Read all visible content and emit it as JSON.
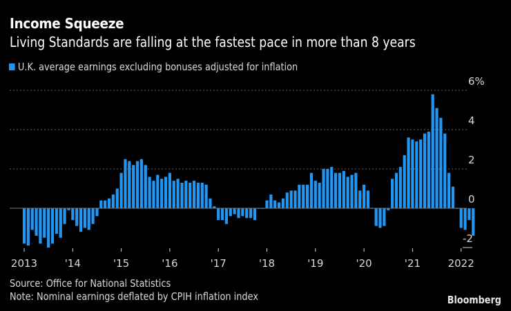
{
  "header": {
    "title": "Income Squeeze",
    "subtitle": "Living Standards are falling at the fastest pace in more than 8 years"
  },
  "legend": {
    "label": "U.K. average earnings excluding bonuses adjusted for inflation",
    "color": "#2196f3"
  },
  "footer": {
    "source": "Source: Office for National Statistics",
    "note": "Note: Nominal earnings deflated by CPIH inflation index",
    "brand": "Bloomberg"
  },
  "chart_data": {
    "type": "bar",
    "title": "Income Squeeze",
    "subtitle": "Living Standards are falling at the fastest pace in more than 8 years",
    "xlabel": "",
    "ylabel": "",
    "frequency": "monthly",
    "start": "2013-01",
    "ylim": [
      -2.5,
      6.5
    ],
    "yticks": [
      6,
      4,
      2,
      0,
      -2
    ],
    "ytick_labels": [
      "6%",
      "4",
      "2",
      "0",
      "-2"
    ],
    "grid": true,
    "x_tick_labels": [
      "2013",
      "'14",
      "'15",
      "'16",
      "'17",
      "'18",
      "'19",
      "'20",
      "'21",
      "2022"
    ],
    "bar_color": "#2196f3",
    "series": [
      {
        "name": "U.K. average earnings excluding bonuses adjusted for inflation",
        "values": [
          -1.8,
          -1.9,
          -1.1,
          -1.4,
          -1.8,
          -1.5,
          -2.0,
          -1.8,
          -1.3,
          -1.5,
          -0.8,
          -0.1,
          -0.6,
          -0.9,
          -1.2,
          -1.0,
          -1.1,
          -0.8,
          -0.4,
          0.4,
          0.4,
          0.5,
          0.7,
          1.0,
          1.8,
          2.5,
          2.4,
          2.2,
          2.4,
          2.5,
          2.2,
          1.6,
          1.4,
          1.7,
          1.5,
          1.6,
          1.8,
          1.4,
          1.5,
          1.3,
          1.4,
          1.3,
          1.4,
          1.3,
          1.3,
          1.2,
          0.5,
          0.1,
          -0.6,
          -0.6,
          -0.8,
          -0.4,
          -0.3,
          -0.5,
          -0.4,
          -0.5,
          -0.5,
          -0.6,
          0.0,
          0.0,
          0.4,
          0.7,
          0.4,
          0.3,
          0.5,
          0.8,
          0.9,
          0.9,
          1.2,
          1.2,
          1.2,
          1.8,
          1.4,
          1.3,
          2.0,
          2.0,
          2.1,
          1.8,
          1.8,
          1.9,
          1.6,
          1.7,
          1.8,
          0.9,
          1.2,
          0.9,
          0.0,
          -0.9,
          -1.0,
          -0.9,
          -0.1,
          1.5,
          1.8,
          2.1,
          2.7,
          3.6,
          3.5,
          3.4,
          3.5,
          3.8,
          3.9,
          5.8,
          5.1,
          4.6,
          3.8,
          1.8,
          1.1,
          0.0,
          -1.0,
          -1.1,
          -0.6,
          -1.4
        ]
      }
    ],
    "legend_position": "top-left",
    "source": "Office for National Statistics"
  }
}
